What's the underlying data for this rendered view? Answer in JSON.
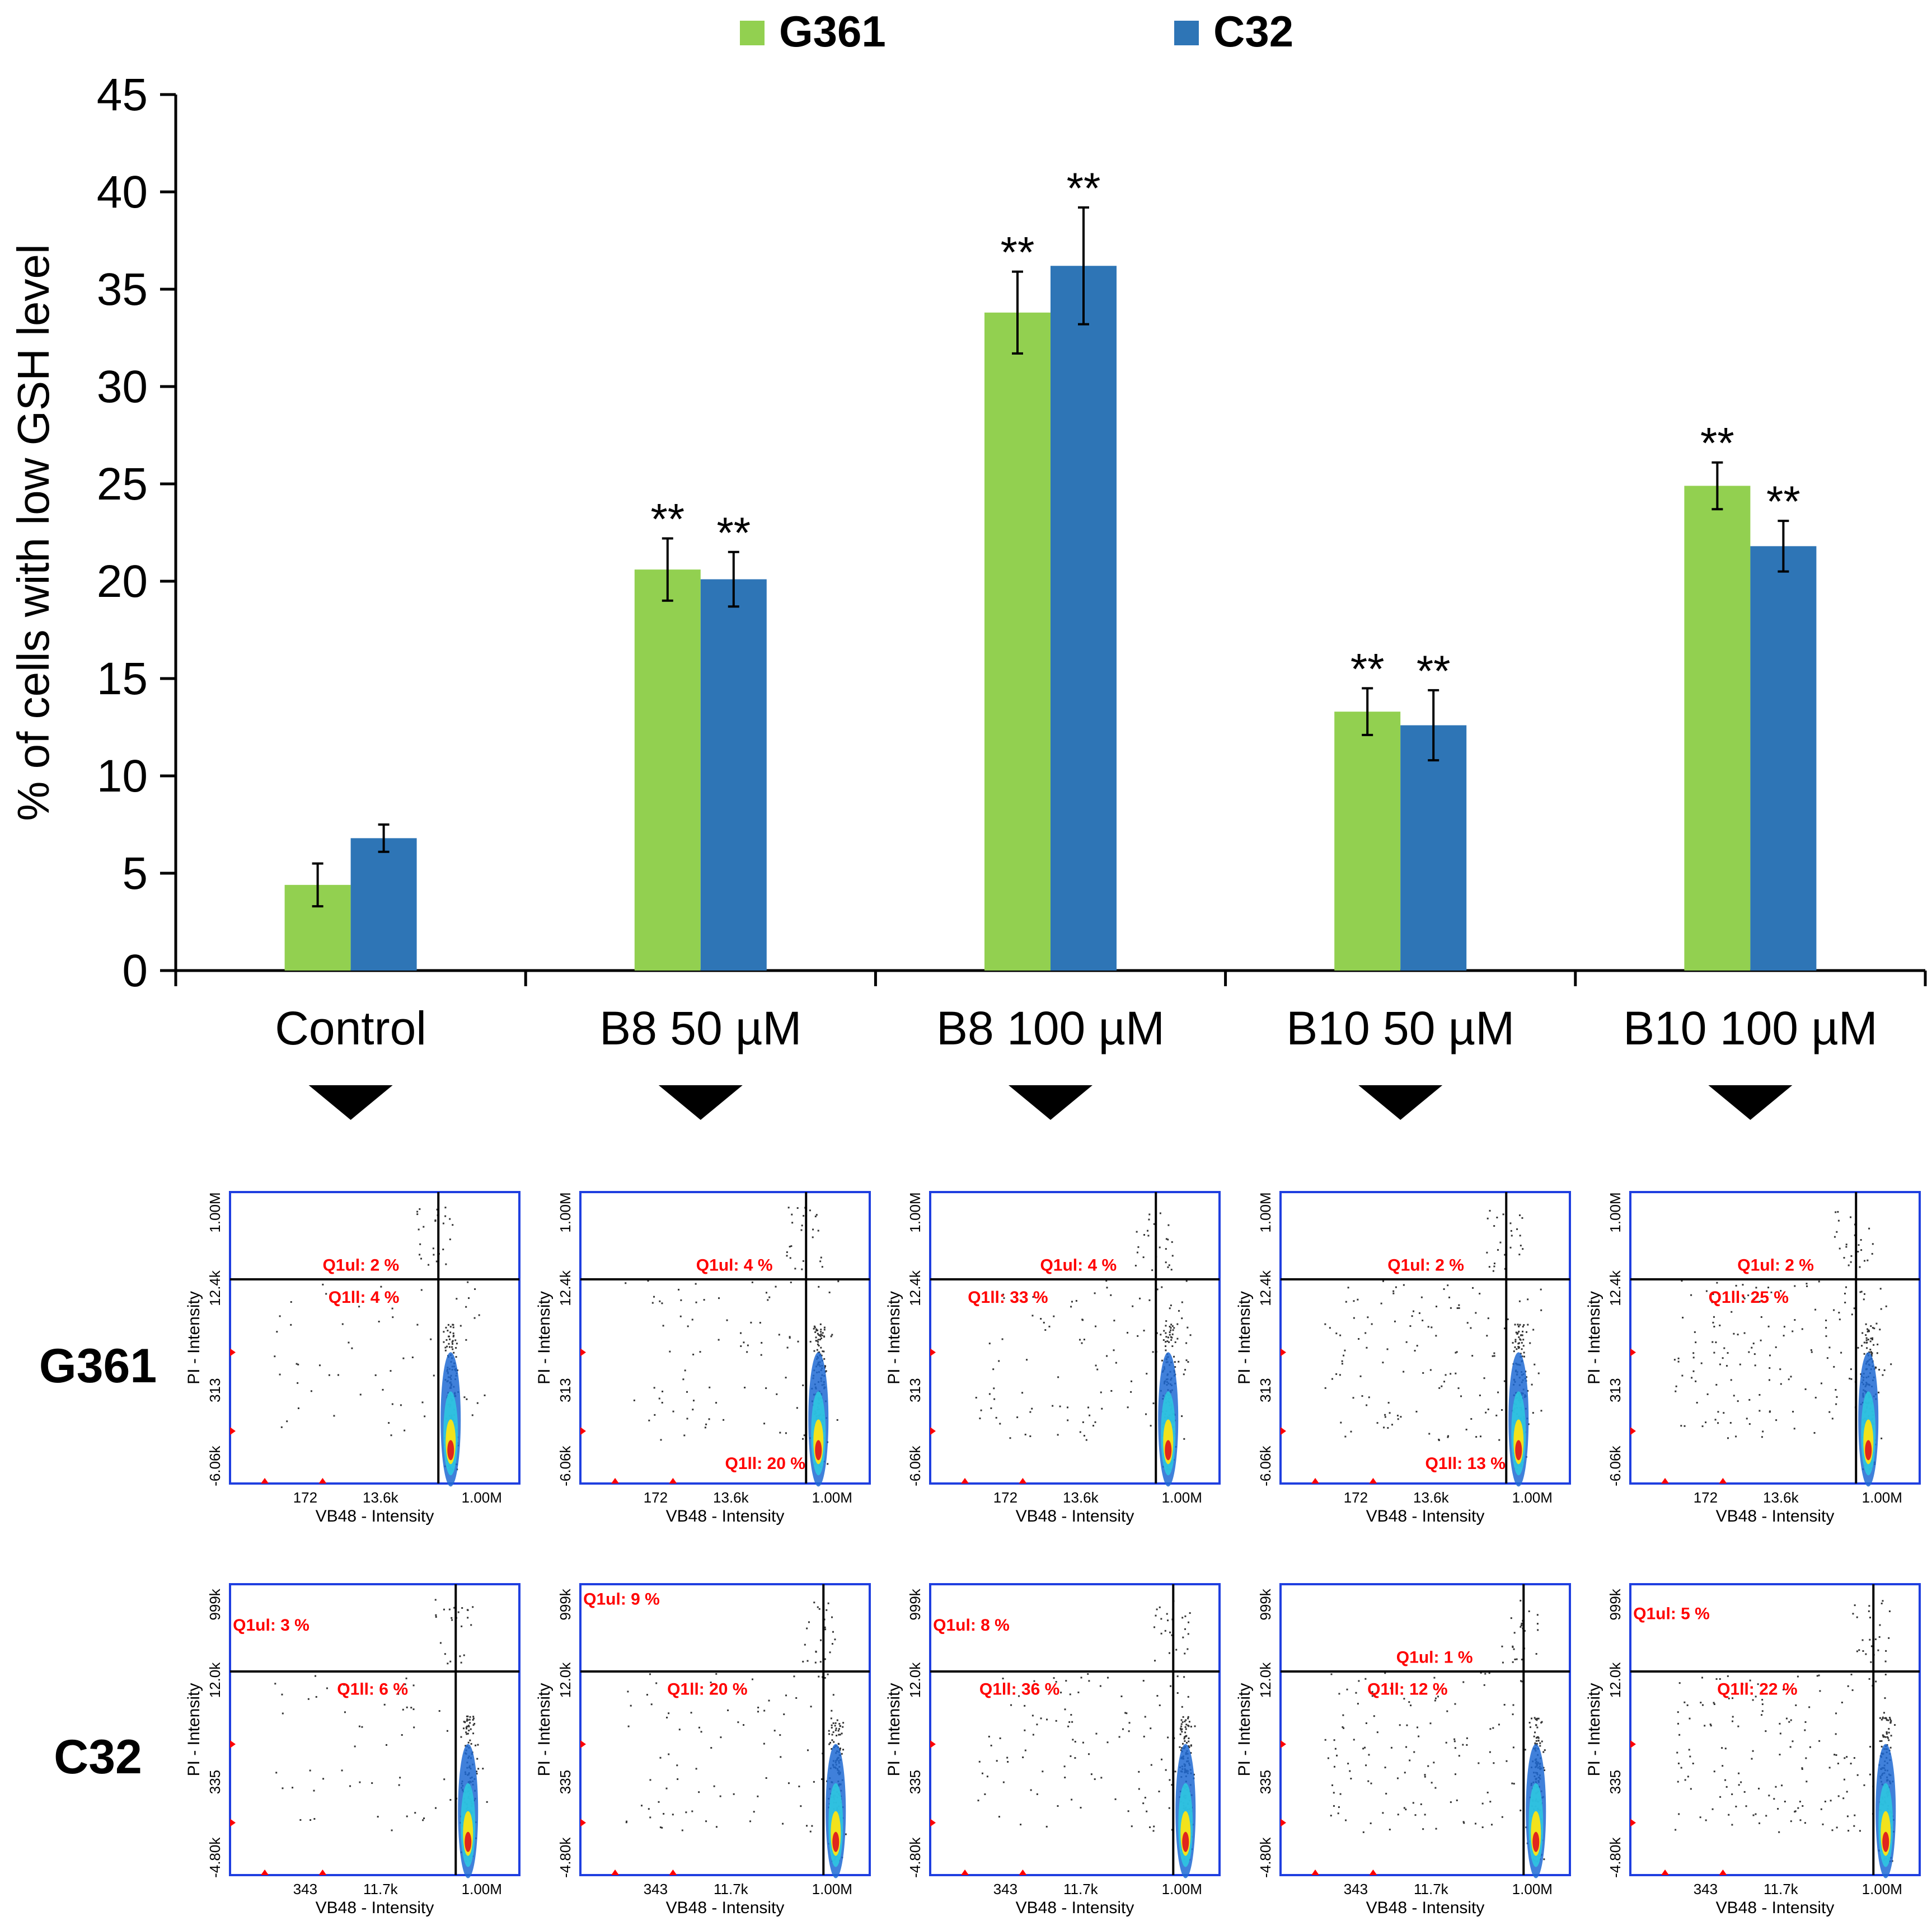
{
  "chart_data": {
    "type": "bar",
    "legend": {
      "position": "top-center",
      "entries": [
        {
          "name": "G361",
          "color": "#92d050"
        },
        {
          "name": "C32",
          "color": "#2e75b6"
        }
      ]
    },
    "ylabel": "% of cells with low GSH level",
    "xlabel": "",
    "ylim": [
      0,
      45
    ],
    "yticks": [
      0,
      5,
      10,
      15,
      20,
      25,
      30,
      35,
      40,
      45
    ],
    "categories": [
      "Control",
      "B8 50 µM",
      "B8 100 µM",
      "B10 50 µM",
      "B10 100 µM"
    ],
    "series": [
      {
        "name": "G361",
        "color": "#92d050",
        "values": [
          4.4,
          20.6,
          33.8,
          13.3,
          24.9
        ],
        "errors": [
          1.1,
          1.6,
          2.1,
          1.2,
          1.2
        ],
        "significance": [
          "",
          "**",
          "**",
          "**",
          "**"
        ]
      },
      {
        "name": "C32",
        "color": "#2e75b6",
        "values": [
          6.8,
          20.1,
          36.2,
          12.6,
          21.8
        ],
        "errors": [
          0.7,
          1.4,
          3.0,
          1.8,
          1.3
        ],
        "significance": [
          "",
          "**",
          "**",
          "**",
          "**"
        ]
      }
    ],
    "grid": false
  },
  "flow_panels": {
    "xlabel": "VB48 - Intensity",
    "ylabel": "PI - Intensity",
    "rows": [
      {
        "label": "G361",
        "x_ticks": [
          "172",
          "13.6k",
          "1.00M"
        ],
        "y_ticks": [
          "-6.06k",
          "313",
          "12.4k",
          "1.00M"
        ],
        "gates": [
          {
            "ul": "Q1ul: 2 %",
            "ll": "Q1ll: 4 %"
          },
          {
            "ul": "Q1ul: 4 %",
            "ll": "Q1ll: 20 %"
          },
          {
            "ul": "Q1ul: 4 %",
            "ll": "Q1ll: 33 %"
          },
          {
            "ul": "Q1ul: 2 %",
            "ll": "Q1ll: 13 %"
          },
          {
            "ul": "Q1ul: 2 %",
            "ll": "Q1ll: 25 %"
          }
        ]
      },
      {
        "label": "C32",
        "x_ticks": [
          "343",
          "11.7k",
          "1.00M"
        ],
        "y_ticks": [
          "-4.80k",
          "335",
          "12.0k",
          "999k"
        ],
        "gates": [
          {
            "ul": "Q1ul: 3 %",
            "ll": "Q1ll: 6 %"
          },
          {
            "ul": "Q1ul: 9 %",
            "ll": "Q1ll: 20 %"
          },
          {
            "ul": "Q1ul: 8 %",
            "ll": "Q1ll: 36 %"
          },
          {
            "ul": "Q1ul: 1 %",
            "ll": "Q1ll: 12 %"
          },
          {
            "ul": "Q1ul: 5 %",
            "ll": "Q1ll: 22 %"
          }
        ]
      }
    ]
  }
}
